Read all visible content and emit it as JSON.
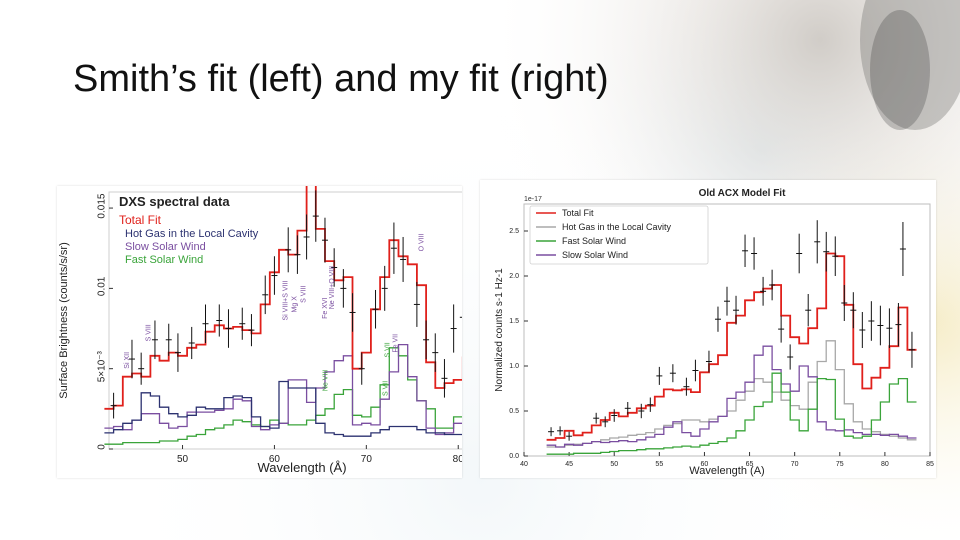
{
  "slide": {
    "title": "Smith’s fit (left) and my fit (right)"
  },
  "colors": {
    "red": "#e0201b",
    "gray": "#a8a8a8",
    "navy": "#2c3270",
    "purple": "#7a4ea0",
    "green": "#3aa43a",
    "black": "#111111"
  },
  "chart_data": [
    {
      "type": "line",
      "title": "DXS spectral data",
      "xlabel": "Wavelength (Å)",
      "ylabel": "Surface Brightness (counts/s/sr)",
      "xlim": [
        42,
        84
      ],
      "ylim": [
        0,
        0.016
      ],
      "x_ticks": [
        50,
        60,
        70,
        80
      ],
      "x_tick_labels": [
        "50",
        "60",
        "70",
        "80"
      ],
      "y_ticks": [
        0,
        0.005,
        0.01,
        0.015
      ],
      "y_tick_labels": [
        "0",
        "5×10⁻³",
        "0.01",
        "0.015"
      ],
      "legend_position": "top-left",
      "legend": [
        "Total Fit",
        "Hot Gas in the Local Cavity",
        "Slow Solar Wind",
        "Fast Solar Wind"
      ],
      "line_annotations": [
        {
          "text": "Si XII",
          "x": 44.2,
          "y": 0.005,
          "color": "purple"
        },
        {
          "text": "S VIII",
          "x": 46.5,
          "y": 0.0067,
          "color": "purple"
        },
        {
          "text": "Si VIII+S VIII",
          "x": 61.4,
          "y": 0.008,
          "color": "purple"
        },
        {
          "text": "Mg X",
          "x": 62.4,
          "y": 0.0085,
          "color": "purple"
        },
        {
          "text": "S VIII",
          "x": 63.4,
          "y": 0.0091,
          "color": "purple"
        },
        {
          "text": "Fe XVI",
          "x": 65.7,
          "y": 0.0081,
          "color": "purple"
        },
        {
          "text": "Ne VIII+O VIII",
          "x": 66.5,
          "y": 0.0087,
          "color": "purple"
        },
        {
          "text": "Ne VIII",
          "x": 65.8,
          "y": 0.0036,
          "color": "green"
        },
        {
          "text": "S VII",
          "x": 72.5,
          "y": 0.0057,
          "color": "green"
        },
        {
          "text": "Fe VII",
          "x": 73.4,
          "y": 0.006,
          "color": "purple"
        },
        {
          "text": "S VII",
          "x": 72.3,
          "y": 0.0033,
          "color": "green"
        },
        {
          "text": "O VIII",
          "x": 76.2,
          "y": 0.0123,
          "color": "purple"
        },
        {
          "text": "Si VII",
          "x": 82.5,
          "y": 0.0012,
          "color": "green"
        }
      ],
      "x": [
        42,
        43,
        44,
        45,
        46,
        47,
        48,
        49,
        50,
        51,
        52,
        53,
        54,
        55,
        56,
        57,
        58,
        59,
        60,
        61,
        62,
        63,
        64,
        65,
        66,
        67,
        68,
        69,
        70,
        71,
        72,
        73,
        74,
        75,
        76,
        77,
        78,
        79,
        80,
        81,
        82,
        83,
        84
      ],
      "series": [
        {
          "name": "Total Fit",
          "color": "red",
          "values": [
            0.0025,
            0.0027,
            0.0045,
            0.0047,
            0.0045,
            0.0058,
            0.0055,
            0.006,
            0.0058,
            0.0063,
            0.0065,
            0.0073,
            0.0077,
            0.0075,
            0.0076,
            0.0074,
            0.0072,
            0.009,
            0.011,
            0.0124,
            0.0121,
            0.0136,
            0.0165,
            0.0137,
            0.0117,
            0.0105,
            0.0107,
            0.005,
            0.006,
            0.0087,
            0.0107,
            0.013,
            0.012,
            0.0115,
            0.0102,
            0.0054,
            0.0038,
            0.0041,
            0.0043,
            0.0057,
            0.006,
            0.0043,
            0.0038
          ]
        },
        {
          "name": "Hot Gas in the Local Cavity",
          "color": "navy",
          "values": [
            0.001,
            0.0012,
            0.0016,
            0.0018,
            0.0035,
            0.0033,
            0.0026,
            0.0022,
            0.002,
            0.0021,
            0.0026,
            0.0025,
            0.0025,
            0.0032,
            0.0033,
            0.0032,
            0.002,
            0.0014,
            0.0013,
            0.0042,
            0.0038,
            0.0038,
            0.0038,
            0.0016,
            0.001,
            0.0009,
            0.0008,
            0.0008,
            0.0008,
            0.001,
            0.0012,
            0.0014,
            0.0014,
            0.0014,
            0.0012,
            0.001,
            0.001,
            0.0009,
            0.0009,
            0.0008,
            0.0007,
            0.0007,
            0.0006
          ]
        },
        {
          "name": "Slow Solar Wind",
          "color": "purple",
          "values": [
            0.0013,
            0.0014,
            0.0012,
            0.0018,
            0.0022,
            0.0022,
            0.0016,
            0.0013,
            0.0014,
            0.0023,
            0.0023,
            0.0023,
            0.0024,
            0.0025,
            0.0031,
            0.003,
            0.0014,
            0.0012,
            0.0015,
            0.0016,
            0.0043,
            0.0043,
            0.0029,
            0.0038,
            0.0048,
            0.0055,
            0.0058,
            0.0015,
            0.0016,
            0.0015,
            0.0031,
            0.0048,
            0.0065,
            0.0045,
            0.003,
            0.0013,
            0.0009,
            0.001,
            0.0016,
            0.0016,
            0.0015,
            0.0008,
            0.0008
          ]
        },
        {
          "name": "Fast Solar Wind",
          "color": "green",
          "values": [
            0.0003,
            0.0003,
            0.0004,
            0.0004,
            0.0004,
            0.0004,
            0.0005,
            0.0005,
            0.0006,
            0.0008,
            0.0009,
            0.0012,
            0.0013,
            0.0015,
            0.0018,
            0.0017,
            0.0015,
            0.0014,
            0.0018,
            0.0016,
            0.0015,
            0.0015,
            0.0018,
            0.0021,
            0.0025,
            0.0034,
            0.0037,
            0.0021,
            0.002,
            0.0026,
            0.004,
            0.0063,
            0.0058,
            0.0043,
            0.003,
            0.0025,
            0.0013,
            0.0013,
            0.002,
            0.0023,
            0.002,
            0.002,
            0.0016
          ]
        }
      ],
      "data_points": [
        {
          "x": 42.5,
          "y": 0.0027,
          "err": 0.0008
        },
        {
          "x": 44.5,
          "y": 0.0056,
          "err": 0.0012
        },
        {
          "x": 45.5,
          "y": 0.005,
          "err": 0.001
        },
        {
          "x": 47.0,
          "y": 0.0068,
          "err": 0.0012
        },
        {
          "x": 48.5,
          "y": 0.0068,
          "err": 0.001
        },
        {
          "x": 49.5,
          "y": 0.006,
          "err": 0.0012
        },
        {
          "x": 51.0,
          "y": 0.0066,
          "err": 0.001
        },
        {
          "x": 52.5,
          "y": 0.0078,
          "err": 0.0012
        },
        {
          "x": 54.0,
          "y": 0.008,
          "err": 0.001
        },
        {
          "x": 55.0,
          "y": 0.0075,
          "err": 0.0012
        },
        {
          "x": 56.5,
          "y": 0.0078,
          "err": 0.001
        },
        {
          "x": 57.5,
          "y": 0.0074,
          "err": 0.001
        },
        {
          "x": 59.0,
          "y": 0.0096,
          "err": 0.0012
        },
        {
          "x": 60.0,
          "y": 0.0108,
          "err": 0.0012
        },
        {
          "x": 61.5,
          "y": 0.0124,
          "err": 0.0014
        },
        {
          "x": 62.5,
          "y": 0.0121,
          "err": 0.0012
        },
        {
          "x": 63.5,
          "y": 0.0132,
          "err": 0.0014
        },
        {
          "x": 64.5,
          "y": 0.0145,
          "err": 0.0016
        },
        {
          "x": 65.5,
          "y": 0.013,
          "err": 0.0014
        },
        {
          "x": 66.5,
          "y": 0.0113,
          "err": 0.0012
        },
        {
          "x": 67.5,
          "y": 0.01,
          "err": 0.0012
        },
        {
          "x": 68.5,
          "y": 0.0085,
          "err": 0.0012
        },
        {
          "x": 69.5,
          "y": 0.005,
          "err": 0.001
        },
        {
          "x": 71.0,
          "y": 0.0087,
          "err": 0.0012
        },
        {
          "x": 72.0,
          "y": 0.01,
          "err": 0.0014
        },
        {
          "x": 73.0,
          "y": 0.0125,
          "err": 0.0016
        },
        {
          "x": 74.0,
          "y": 0.0118,
          "err": 0.0014
        },
        {
          "x": 75.5,
          "y": 0.009,
          "err": 0.0014
        },
        {
          "x": 76.5,
          "y": 0.0068,
          "err": 0.0012
        },
        {
          "x": 77.5,
          "y": 0.006,
          "err": 0.0012
        },
        {
          "x": 78.5,
          "y": 0.0044,
          "err": 0.0012
        },
        {
          "x": 79.5,
          "y": 0.0075,
          "err": 0.0015
        },
        {
          "x": 80.5,
          "y": 0.0082,
          "err": 0.0015
        },
        {
          "x": 81.5,
          "y": 0.0062,
          "err": 0.0012
        },
        {
          "x": 82.5,
          "y": 0.0055,
          "err": 0.0012
        },
        {
          "x": 83.5,
          "y": 0.0044,
          "err": 0.0012
        }
      ]
    },
    {
      "type": "line",
      "title": "Old ACX Model Fit",
      "xlabel": "Wavelength (A)",
      "ylabel": "Normalized counts  s-1  Hz-1",
      "offset_text": "1e-17",
      "xlim": [
        40,
        85
      ],
      "ylim": [
        0,
        2.8
      ],
      "x_ticks": [
        40,
        45,
        50,
        55,
        60,
        65,
        70,
        75,
        80,
        85
      ],
      "x_tick_labels": [
        "40",
        "45",
        "50",
        "55",
        "60",
        "65",
        "70",
        "75",
        "80",
        "85"
      ],
      "y_ticks": [
        0,
        0.5,
        1.0,
        1.5,
        2.0,
        2.5
      ],
      "y_tick_labels": [
        "0.0",
        "0.5",
        "1.0",
        "1.5",
        "2.0",
        "2.5"
      ],
      "legend_position": "top-left",
      "legend": [
        "Total Fit",
        "Hot Gas in the Local Cavity",
        "Fast Solar Wind",
        "Slow Solar Wind"
      ],
      "x": [
        43,
        44,
        45,
        46,
        47,
        48,
        49,
        50,
        51,
        52,
        53,
        54,
        55,
        56,
        57,
        58,
        59,
        60,
        61,
        62,
        63,
        64,
        65,
        66,
        67,
        68,
        69,
        70,
        71,
        72,
        73,
        74,
        75,
        76,
        77,
        78,
        79,
        80,
        81,
        82,
        83
      ],
      "series": [
        {
          "name": "Total Fit",
          "color": "red",
          "values": [
            0.18,
            0.2,
            0.28,
            0.23,
            0.26,
            0.34,
            0.4,
            0.48,
            0.44,
            0.48,
            0.53,
            0.56,
            0.66,
            0.74,
            0.73,
            0.74,
            0.71,
            0.93,
            1.02,
            1.12,
            1.48,
            1.56,
            1.73,
            1.82,
            1.86,
            1.9,
            1.56,
            1.32,
            1.25,
            1.42,
            1.64,
            2.25,
            2.22,
            1.68,
            1.02,
            0.75,
            0.87,
            0.98,
            1.22,
            1.65,
            1.18
          ]
        },
        {
          "name": "Hot Gas in the Local Cavity",
          "color": "gray",
          "values": [
            0.1,
            0.1,
            0.12,
            0.13,
            0.14,
            0.16,
            0.18,
            0.2,
            0.21,
            0.23,
            0.24,
            0.26,
            0.3,
            0.34,
            0.36,
            0.4,
            0.4,
            0.38,
            0.41,
            0.44,
            0.5,
            0.62,
            0.72,
            0.86,
            0.82,
            0.71,
            0.62,
            0.56,
            0.52,
            0.82,
            1.05,
            1.28,
            0.96,
            0.58,
            0.38,
            0.3,
            0.27,
            0.24,
            0.22,
            0.2,
            0.18
          ]
        },
        {
          "name": "Fast Solar Wind",
          "color": "green",
          "values": [
            0.02,
            0.02,
            0.02,
            0.03,
            0.03,
            0.03,
            0.04,
            0.05,
            0.06,
            0.06,
            0.07,
            0.08,
            0.08,
            0.09,
            0.1,
            0.11,
            0.1,
            0.12,
            0.14,
            0.16,
            0.2,
            0.28,
            0.4,
            0.55,
            0.6,
            0.92,
            0.71,
            0.4,
            0.28,
            0.52,
            0.86,
            0.85,
            0.41,
            0.22,
            0.2,
            0.22,
            0.4,
            0.6,
            0.8,
            0.86,
            0.6
          ]
        },
        {
          "name": "Slow Solar Wind",
          "color": "purple",
          "values": [
            0.12,
            0.1,
            0.13,
            0.12,
            0.14,
            0.16,
            0.15,
            0.16,
            0.17,
            0.16,
            0.18,
            0.21,
            0.24,
            0.32,
            0.38,
            0.26,
            0.22,
            0.3,
            0.38,
            0.44,
            0.64,
            0.71,
            0.82,
            1.12,
            1.22,
            0.96,
            0.8,
            0.72,
            1.0,
            0.88,
            0.38,
            0.29,
            0.28,
            0.29,
            0.26,
            0.24,
            0.24,
            0.23,
            0.24,
            0.22,
            0.2
          ]
        }
      ],
      "data_points": [
        {
          "x": 43.0,
          "y": 0.27,
          "err": 0.05
        },
        {
          "x": 44.0,
          "y": 0.28,
          "err": 0.05
        },
        {
          "x": 45.0,
          "y": 0.22,
          "err": 0.05
        },
        {
          "x": 48.0,
          "y": 0.42,
          "err": 0.06
        },
        {
          "x": 49.0,
          "y": 0.38,
          "err": 0.06
        },
        {
          "x": 50.0,
          "y": 0.45,
          "err": 0.07
        },
        {
          "x": 51.5,
          "y": 0.53,
          "err": 0.07
        },
        {
          "x": 53.0,
          "y": 0.5,
          "err": 0.08
        },
        {
          "x": 54.0,
          "y": 0.57,
          "err": 0.08
        },
        {
          "x": 55.0,
          "y": 0.89,
          "err": 0.1
        },
        {
          "x": 56.5,
          "y": 0.92,
          "err": 0.1
        },
        {
          "x": 58.0,
          "y": 0.77,
          "err": 0.1
        },
        {
          "x": 59.0,
          "y": 0.95,
          "err": 0.12
        },
        {
          "x": 60.5,
          "y": 1.05,
          "err": 0.12
        },
        {
          "x": 61.5,
          "y": 1.52,
          "err": 0.14
        },
        {
          "x": 62.5,
          "y": 1.72,
          "err": 0.16
        },
        {
          "x": 63.5,
          "y": 1.62,
          "err": 0.16
        },
        {
          "x": 64.5,
          "y": 2.28,
          "err": 0.18
        },
        {
          "x": 65.5,
          "y": 2.25,
          "err": 0.18
        },
        {
          "x": 66.5,
          "y": 1.83,
          "err": 0.16
        },
        {
          "x": 67.5,
          "y": 1.9,
          "err": 0.17
        },
        {
          "x": 68.5,
          "y": 1.41,
          "err": 0.15
        },
        {
          "x": 69.5,
          "y": 1.1,
          "err": 0.14
        },
        {
          "x": 70.5,
          "y": 2.25,
          "err": 0.22
        },
        {
          "x": 71.5,
          "y": 1.62,
          "err": 0.18
        },
        {
          "x": 72.5,
          "y": 2.38,
          "err": 0.24
        },
        {
          "x": 73.5,
          "y": 2.27,
          "err": 0.22
        },
        {
          "x": 74.5,
          "y": 2.22,
          "err": 0.22
        },
        {
          "x": 75.5,
          "y": 1.7,
          "err": 0.2
        },
        {
          "x": 76.5,
          "y": 1.62,
          "err": 0.2
        },
        {
          "x": 77.5,
          "y": 1.4,
          "err": 0.2
        },
        {
          "x": 78.5,
          "y": 1.5,
          "err": 0.22
        },
        {
          "x": 79.5,
          "y": 1.45,
          "err": 0.22
        },
        {
          "x": 80.5,
          "y": 1.42,
          "err": 0.22
        },
        {
          "x": 81.5,
          "y": 1.46,
          "err": 0.24
        },
        {
          "x": 82.0,
          "y": 2.3,
          "err": 0.3
        },
        {
          "x": 83.0,
          "y": 1.18,
          "err": 0.2
        }
      ]
    }
  ]
}
